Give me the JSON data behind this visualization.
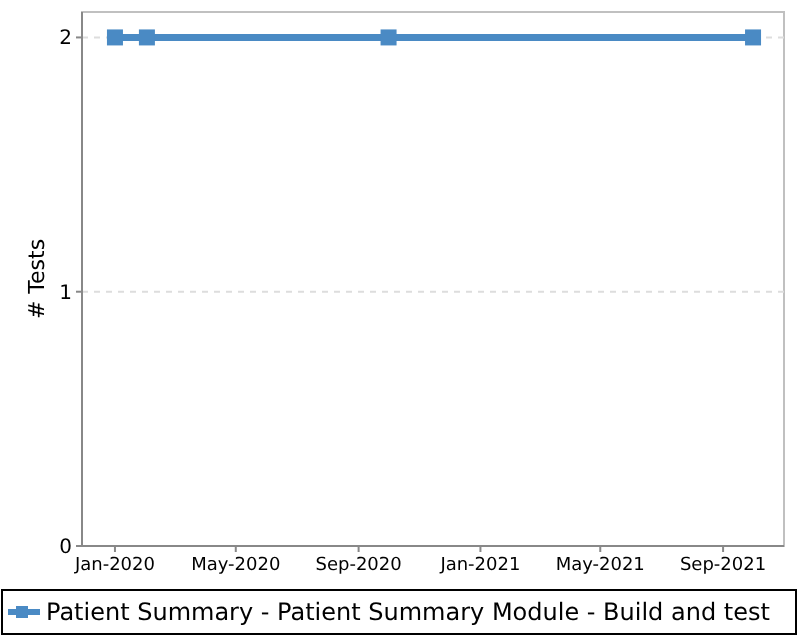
{
  "chart_data": {
    "type": "line",
    "ylabel": "# Tests",
    "x": [
      "2020-01-01",
      "2020-02-02",
      "2020-10-01",
      "2021-10-01"
    ],
    "series": [
      {
        "name": "Patient Summary - Patient Summary Module - Build and test",
        "color": "#4a8ac4",
        "values": [
          2,
          2,
          2,
          2
        ]
      }
    ],
    "xlim": [
      "2019-11-29",
      "2021-11-01"
    ],
    "xticks": [
      {
        "value": "2020-01-01",
        "label": "Jan-2020"
      },
      {
        "value": "2020-05-01",
        "label": "May-2020"
      },
      {
        "value": "2020-09-01",
        "label": "Sep-2020"
      },
      {
        "value": "2021-01-01",
        "label": "Jan-2021"
      },
      {
        "value": "2021-05-01",
        "label": "May-2021"
      },
      {
        "value": "2021-09-01",
        "label": "Sep-2021"
      }
    ],
    "ylim": [
      0,
      2.1
    ],
    "yticks": [
      0,
      1,
      2
    ],
    "grid": "y",
    "legend": "bottom",
    "marker": "square",
    "line_style": "solid"
  }
}
